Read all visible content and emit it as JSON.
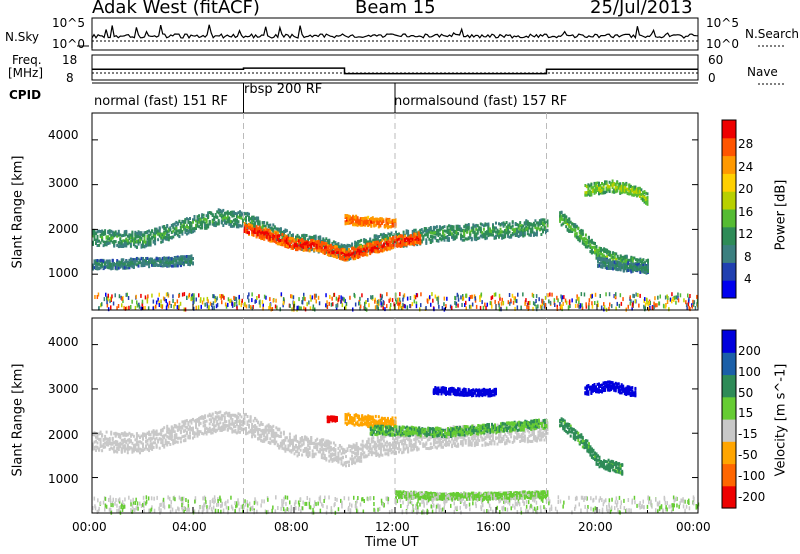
{
  "header": {
    "station": "Adak West (fitACF)",
    "beam": "Beam 15",
    "date": "25/Jul/2013"
  },
  "nsky": {
    "label": "N.Sky",
    "ticks": [
      "10^5",
      "10^0"
    ],
    "right_label": "N.Search",
    "right_ticks": [
      "10^5",
      "10^0"
    ]
  },
  "freq": {
    "label_line1": "Freq.",
    "label_line2": "[MHz]",
    "ticks": [
      "18",
      "8"
    ],
    "right_label": "Nave",
    "right_ticks": [
      "60",
      "0"
    ]
  },
  "cpid": {
    "label": "CPID",
    "segments": [
      {
        "name": "normal (fast) 151 RF",
        "start_h": 0,
        "end_h": 6
      },
      {
        "name": "rbsp 200 RF",
        "start_h": 6,
        "end_h": 12
      },
      {
        "name": "normalsound (fast) 157 RF",
        "start_h": 12,
        "end_h": 24
      }
    ]
  },
  "power_panel": {
    "ylabel": "Slant Range [km]",
    "yticks": [
      "4000",
      "3000",
      "2000",
      "1000"
    ],
    "colorbar_label": "Power [dB]",
    "colorbar_ticks": [
      "28",
      "24",
      "20",
      "16",
      "12",
      "8",
      "4"
    ],
    "colors": [
      "#0000ee",
      "#2040b0",
      "#3b7f7f",
      "#2e8b57",
      "#55bb33",
      "#b8d000",
      "#ffd000",
      "#ff9900",
      "#ff5500",
      "#ee0000"
    ]
  },
  "velocity_panel": {
    "ylabel": "Slant Range [km]",
    "yticks": [
      "4000",
      "3000",
      "2000",
      "1000"
    ],
    "colorbar_label": "Velocity [m s^-1]",
    "colorbar_ticks": [
      "200",
      "100",
      "50",
      "15",
      "-15",
      "-50",
      "-100",
      "-200"
    ],
    "colors": [
      "#0000dd",
      "#1b5fa8",
      "#2e8b57",
      "#66cc33",
      "#c8c8c8",
      "#ffa500",
      "#ff6600",
      "#ee0000"
    ]
  },
  "xaxis": {
    "title": "Time UT",
    "ticks": [
      "00:00",
      "04:00",
      "08:00",
      "12:00",
      "16:00",
      "20:00",
      "00:00"
    ]
  },
  "chart_data": {
    "type": "heatmap",
    "title": "Adak West (fitACF) Beam 15 25/Jul/2013",
    "xlabel": "Time UT",
    "ylabel": "Slant Range [km]",
    "xlim_hours": [
      0,
      24
    ],
    "ylim_km": [
      200,
      4600
    ],
    "series": [
      {
        "name": "Power [dB]",
        "zlim": [
          0,
          30
        ]
      },
      {
        "name": "Velocity [m s^-1]",
        "zlim": [
          -250,
          250
        ]
      }
    ],
    "freq_mhz": [
      {
        "start_h": 0,
        "end_h": 6,
        "value": 12
      },
      {
        "start_h": 6,
        "end_h": 10,
        "value": 12.5
      },
      {
        "start_h": 10,
        "end_h": 18,
        "value": 10
      },
      {
        "start_h": 18,
        "end_h": 24,
        "value": 12
      }
    ],
    "power_bands": [
      {
        "t": [
          0,
          2,
          4,
          5,
          6,
          7,
          8,
          9,
          10,
          11,
          12,
          14,
          16,
          18
        ],
        "r": [
          1850,
          1800,
          2150,
          2300,
          2250,
          2000,
          1750,
          1700,
          1500,
          1700,
          1800,
          1950,
          2000,
          2100
        ],
        "w": 350,
        "db": 8
      },
      {
        "t": [
          6,
          7,
          8,
          9,
          10,
          11,
          12,
          13
        ],
        "r": [
          2050,
          1900,
          1700,
          1650,
          1450,
          1600,
          1750,
          1850
        ],
        "w": 250,
        "db": 24
      },
      {
        "t": [
          10,
          11,
          12
        ],
        "r": [
          2250,
          2200,
          2150
        ],
        "w": 200,
        "db": 22
      },
      {
        "t": [
          0,
          1,
          2,
          3,
          4
        ],
        "r": [
          1250,
          1250,
          1300,
          1300,
          1350
        ],
        "w": 200,
        "db": 6
      },
      {
        "t": [
          18.5,
          19.5,
          20,
          21,
          22
        ],
        "r": [
          2300,
          1800,
          1500,
          1300,
          1200
        ],
        "w": 300,
        "db": 10
      },
      {
        "t": [
          19.5,
          20.5,
          21.5,
          22
        ],
        "r": [
          2900,
          3000,
          2900,
          2700
        ],
        "w": 250,
        "db": 12
      },
      {
        "t": [
          20,
          21,
          22
        ],
        "r": [
          1300,
          1200,
          1150
        ],
        "w": 200,
        "db": 6
      }
    ],
    "velocity_bands": [
      {
        "t": [
          0,
          2,
          4,
          5,
          6,
          7,
          8,
          9,
          10,
          11,
          12,
          14,
          16,
          18
        ],
        "r": [
          1850,
          1800,
          2150,
          2300,
          2250,
          2000,
          1750,
          1700,
          1500,
          1700,
          1800,
          1950,
          2000,
          2100
        ],
        "w": 450,
        "v": 0
      },
      {
        "t": [
          10,
          11,
          12
        ],
        "r": [
          2350,
          2300,
          2250
        ],
        "w": 250,
        "v": -40
      },
      {
        "t": [
          9.3,
          9.7
        ],
        "r": [
          2350,
          2350
        ],
        "w": 120,
        "v": -200
      },
      {
        "t": [
          13.5,
          15,
          16
        ],
        "r": [
          3000,
          2950,
          2950
        ],
        "w": 150,
        "v": 200
      },
      {
        "t": [
          19.5,
          20.5,
          21.5
        ],
        "r": [
          3000,
          3100,
          2950
        ],
        "w": 200,
        "v": 200
      },
      {
        "t": [
          18.5,
          19.5,
          20,
          21
        ],
        "r": [
          2300,
          1800,
          1400,
          1200
        ],
        "w": 250,
        "v": 40
      },
      {
        "t": [
          11,
          14,
          16,
          18
        ],
        "r": [
          2100,
          2050,
          2150,
          2250
        ],
        "w": 200,
        "v": 30
      },
      {
        "t": [
          12,
          14,
          16,
          18
        ],
        "r": [
          650,
          600,
          620,
          650
        ],
        "w": 150,
        "v": 20
      }
    ]
  }
}
